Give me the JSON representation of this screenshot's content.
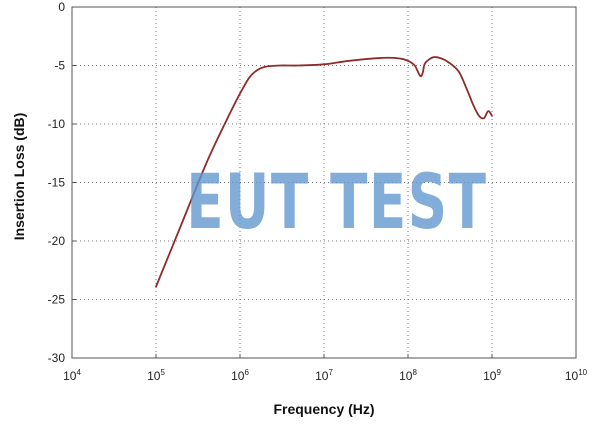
{
  "watermark": "EUT TEST",
  "chart_data": {
    "type": "line",
    "xlabel": "Frequency (Hz)",
    "ylabel": "Insertion Loss (dB)",
    "x_scale": "log",
    "x_range_exponent": [
      4,
      10
    ],
    "x_tick_labels": [
      {
        "base": "10",
        "exp": "4"
      },
      {
        "base": "10",
        "exp": "5"
      },
      {
        "base": "10",
        "exp": "6"
      },
      {
        "base": "10",
        "exp": "7"
      },
      {
        "base": "10",
        "exp": "8"
      },
      {
        "base": "10",
        "exp": "9"
      },
      {
        "base": "10",
        "exp": "10"
      }
    ],
    "ylim": [
      -30,
      0
    ],
    "y_tick_labels": [
      "0",
      "-5",
      "-10",
      "-15",
      "-20",
      "-25",
      "-30"
    ],
    "grid": true,
    "grid_style": "dotted",
    "series": [
      {
        "color": "#8b2e2a",
        "x": [
          100000,
          200000,
          400000,
          700000,
          1000000,
          1300000,
          1600000,
          2000000,
          3000000,
          5000000,
          10000000,
          20000000,
          50000000,
          80000000,
          100000000,
          120000000,
          140000000,
          150000000,
          160000000,
          200000000,
          250000000,
          300000000,
          400000000,
          500000000,
          600000000,
          700000000,
          800000000,
          900000000,
          1000000000
        ],
        "y": [
          -23.9,
          -18.6,
          -13.3,
          -9.6,
          -7.4,
          -6.0,
          -5.4,
          -5.1,
          -5.0,
          -5.0,
          -4.9,
          -4.6,
          -4.35,
          -4.4,
          -4.6,
          -5.0,
          -5.9,
          -5.6,
          -4.8,
          -4.3,
          -4.4,
          -4.7,
          -5.5,
          -7.0,
          -8.4,
          -9.3,
          -9.5,
          -8.9,
          -9.3
        ]
      }
    ]
  }
}
